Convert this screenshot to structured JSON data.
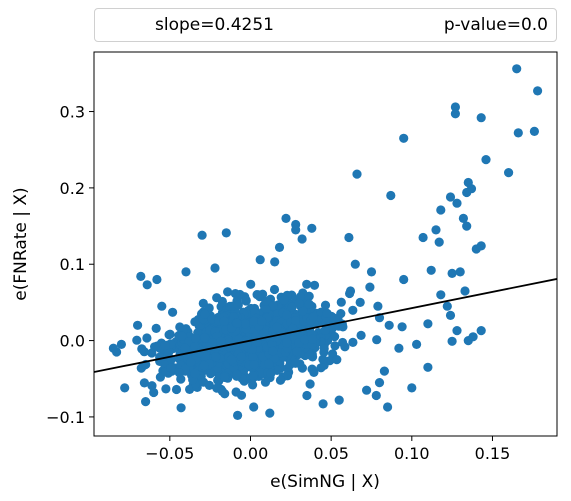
{
  "legend": {
    "slope_text": "slope=0.4251",
    "pvalue_text": "p-value=0.0"
  },
  "chart_data": {
    "type": "scatter",
    "xlabel": "e(SimNG | X)",
    "ylabel": "e(FNRate | X)",
    "xlim": [
      -0.097,
      0.19
    ],
    "ylim": [
      -0.125,
      0.378
    ],
    "xticks": [
      -0.05,
      0.0,
      0.05,
      0.1,
      0.15
    ],
    "xtick_labels": [
      "−0.05",
      "0.00",
      "0.05",
      "0.10",
      "0.15"
    ],
    "yticks": [
      -0.1,
      0.0,
      0.1,
      0.2,
      0.3
    ],
    "ytick_labels": [
      "−0.1",
      "0.0",
      "0.1",
      "0.2",
      "0.3"
    ],
    "grid": false,
    "point_color": "#1f77b4",
    "line_color": "#000000",
    "regression": {
      "slope": 0.4251,
      "intercept": 0.0
    },
    "cloud": {
      "count": 1500,
      "x_mean": 0.0,
      "x_sd": 0.027,
      "y_noise_sd": 0.027
    },
    "points": [
      [
        0.165,
        0.356
      ],
      [
        0.178,
        0.327
      ],
      [
        0.127,
        0.306
      ],
      [
        0.143,
        0.292
      ],
      [
        0.127,
        0.297
      ],
      [
        0.166,
        0.272
      ],
      [
        0.176,
        0.274
      ],
      [
        0.095,
        0.265
      ],
      [
        0.146,
        0.237
      ],
      [
        0.16,
        0.22
      ],
      [
        0.066,
        0.218
      ],
      [
        0.137,
        0.199
      ],
      [
        0.134,
        0.194
      ],
      [
        0.135,
        0.207
      ],
      [
        0.087,
        0.19
      ],
      [
        0.124,
        0.188
      ],
      [
        0.128,
        0.18
      ],
      [
        0.118,
        0.171
      ],
      [
        0.132,
        0.16
      ],
      [
        0.134,
        0.15
      ],
      [
        0.115,
        0.145
      ],
      [
        0.107,
        0.135
      ],
      [
        0.14,
        0.12
      ],
      [
        0.143,
        0.124
      ],
      [
        0.117,
        0.129
      ],
      [
        0.13,
        0.09
      ],
      [
        0.112,
        0.092
      ],
      [
        0.125,
        0.088
      ],
      [
        0.095,
        0.08
      ],
      [
        0.075,
        0.09
      ],
      [
        0.074,
        0.07
      ],
      [
        0.118,
        0.06
      ],
      [
        0.122,
        0.045
      ],
      [
        0.133,
        0.065
      ],
      [
        0.124,
        0.033
      ],
      [
        0.11,
        0.022
      ],
      [
        0.143,
        0.013
      ],
      [
        0.128,
        0.013
      ],
      [
        0.125,
        -0.001
      ],
      [
        0.135,
        0.0
      ],
      [
        0.138,
        0.005
      ],
      [
        0.103,
        -0.005
      ],
      [
        0.092,
        -0.01
      ],
      [
        0.11,
        -0.035
      ],
      [
        0.1,
        -0.062
      ],
      [
        0.085,
        -0.087
      ],
      [
        0.061,
        0.135
      ],
      [
        0.065,
        0.1
      ],
      [
        0.062,
        0.065
      ],
      [
        0.068,
        0.05
      ],
      [
        0.079,
        0.045
      ],
      [
        0.08,
        0.03
      ],
      [
        0.086,
        0.02
      ],
      [
        0.094,
        0.018
      ],
      [
        0.083,
        -0.04
      ],
      [
        0.08,
        -0.055
      ],
      [
        0.072,
        -0.065
      ],
      [
        0.078,
        -0.072
      ],
      [
        0.028,
        0.152
      ],
      [
        0.022,
        0.16
      ],
      [
        0.028,
        0.145
      ],
      [
        0.038,
        0.147
      ],
      [
        0.032,
        0.133
      ],
      [
        -0.03,
        0.138
      ],
      [
        -0.015,
        0.141
      ],
      [
        0.018,
        0.122
      ],
      [
        0.006,
        0.106
      ],
      [
        0.015,
        0.103
      ],
      [
        -0.022,
        0.095
      ],
      [
        -0.04,
        0.09
      ],
      [
        -0.068,
        0.084
      ],
      [
        -0.058,
        0.08
      ],
      [
        -0.064,
        0.073
      ],
      [
        -0.043,
        -0.088
      ],
      [
        -0.065,
        -0.08
      ],
      [
        -0.06,
        -0.068
      ],
      [
        -0.078,
        -0.062
      ],
      [
        0.012,
        -0.095
      ],
      [
        -0.008,
        -0.098
      ],
      [
        0.002,
        -0.087
      ],
      [
        0.045,
        -0.083
      ],
      [
        0.035,
        -0.072
      ],
      [
        0.055,
        -0.078
      ],
      [
        -0.083,
        -0.015
      ],
      [
        -0.08,
        -0.005
      ],
      [
        -0.085,
        -0.01
      ],
      [
        -0.07,
        0.02
      ],
      [
        -0.055,
        0.045
      ]
    ]
  }
}
